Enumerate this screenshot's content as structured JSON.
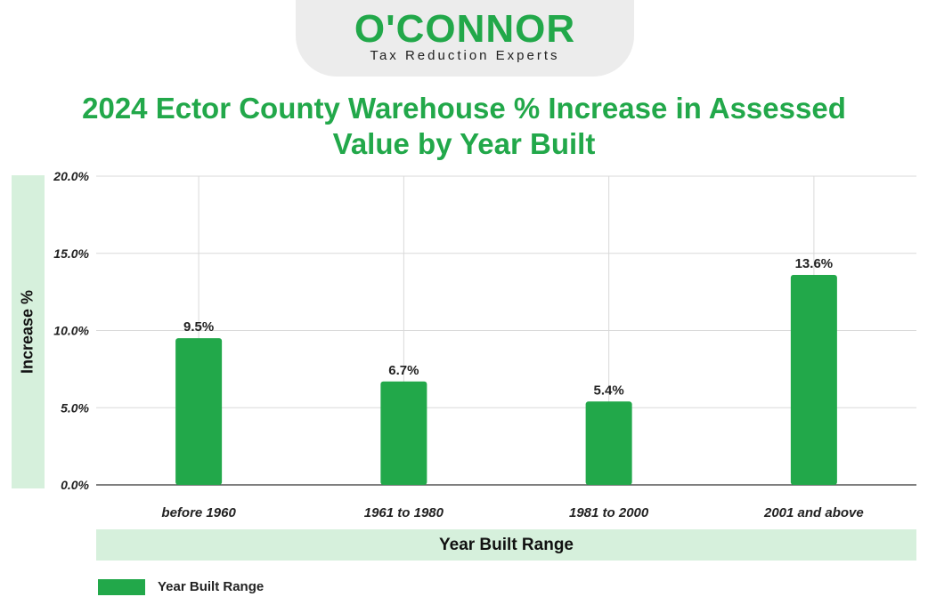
{
  "logo": {
    "name": "O'CONNOR",
    "tagline": "Tax Reduction Experts"
  },
  "colors": {
    "accent": "#22a84a",
    "label_band": "#d6f0dc",
    "grid": "#d9d9d9",
    "axis": "#555555"
  },
  "chart_data": {
    "type": "bar",
    "title": "2024 Ector County Warehouse % Increase in Assessed Value by Year Built",
    "xlabel": "Year Built Range",
    "ylabel": "Increase %",
    "categories": [
      "before 1960",
      "1961 to 1980",
      "1981 to 2000",
      "2001 and above"
    ],
    "series": [
      {
        "name": "Year Built Range",
        "values": [
          9.5,
          6.7,
          5.4,
          13.6
        ],
        "labels": [
          "9.5%",
          "6.7%",
          "5.4%",
          "13.6%"
        ]
      }
    ],
    "ylim": [
      0,
      20
    ],
    "yticks": [
      0,
      5,
      10,
      15,
      20
    ],
    "ytick_labels": [
      "0.0%",
      "5.0%",
      "10.0%",
      "15.0%",
      "20.0%"
    ],
    "grid": true,
    "legend": "bottom-left"
  }
}
